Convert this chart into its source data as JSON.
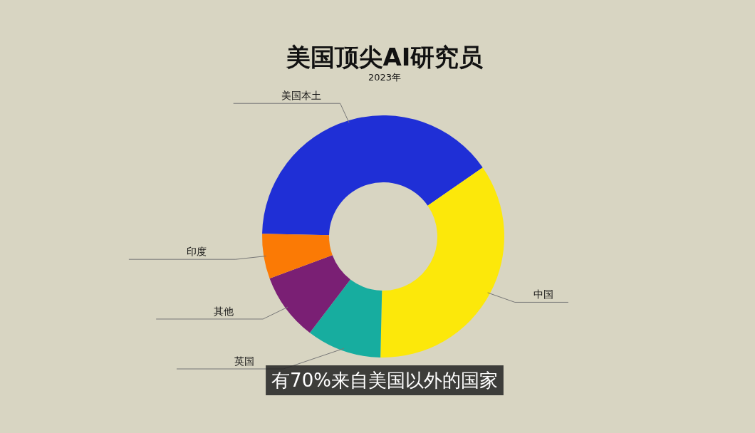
{
  "chart_data": {
    "type": "donut",
    "title": "美国顶尖AI研究员",
    "subtitle": "2023年",
    "categories": [
      "美国本土",
      "中国",
      "英国",
      "其他",
      "印度"
    ],
    "values": [
      40,
      35,
      10,
      9,
      6
    ],
    "colors": [
      "#1f2fd6",
      "#fce80a",
      "#17ad9f",
      "#7a1f74",
      "#fb7a05"
    ],
    "annotations": [
      "有70%来自美国以外的国家"
    ]
  }
}
